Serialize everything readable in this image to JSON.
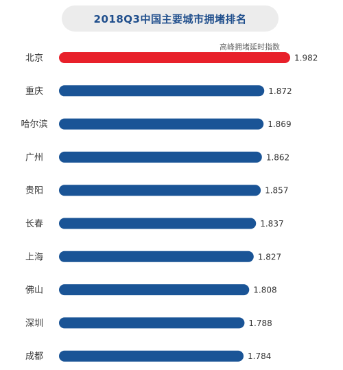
{
  "chart_data": {
    "type": "bar",
    "orientation": "horizontal",
    "title": "2018Q3中国主要城市拥堵排名",
    "value_label": "高峰拥堵延时指数",
    "categories": [
      "北京",
      "重庆",
      "哈尔滨",
      "广州",
      "贵阳",
      "长春",
      "上海",
      "佛山",
      "深圳",
      "成都"
    ],
    "values": [
      1.982,
      1.872,
      1.869,
      1.862,
      1.857,
      1.837,
      1.827,
      1.808,
      1.788,
      1.784
    ],
    "value_labels": [
      "1.982",
      "1.872",
      "1.869",
      "1.862",
      "1.857",
      "1.837",
      "1.827",
      "1.808",
      "1.788",
      "1.784"
    ],
    "highlight_index": 0,
    "colors": {
      "highlight": "#e8202a",
      "default": "#1a5496"
    },
    "grid": false,
    "legend": "none"
  }
}
